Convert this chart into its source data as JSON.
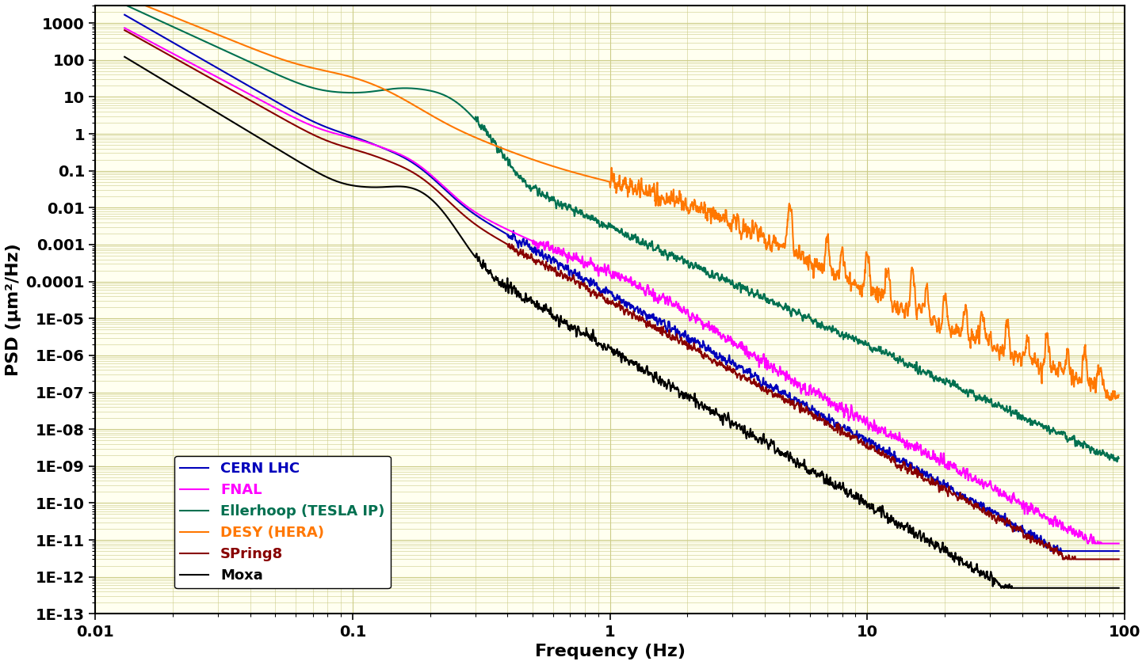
{
  "title": "",
  "xlabel": "Frequency (Hz)",
  "ylabel": "PSD (μm²/Hz)",
  "xlim": [
    0.01,
    100
  ],
  "ylim": [
    1e-13,
    3000
  ],
  "background_color": "#fffff0",
  "fig_background": "#ffffff",
  "series": [
    {
      "label": "CERN LHC",
      "color": "#0000bb",
      "linewidth": 1.5
    },
    {
      "label": "FNAL",
      "color": "#ff00ff",
      "linewidth": 1.5
    },
    {
      "label": "Ellerhoop (TESLA IP)",
      "color": "#007050",
      "linewidth": 1.5
    },
    {
      "label": "DESY (HERA)",
      "color": "#ff7700",
      "linewidth": 1.5
    },
    {
      "label": "SPring8",
      "color": "#880000",
      "linewidth": 1.5
    },
    {
      "label": "Moxa",
      "color": "#000000",
      "linewidth": 1.5
    }
  ],
  "yticks": [
    1e-13,
    1e-12,
    1e-11,
    1e-10,
    1e-09,
    1e-08,
    1e-07,
    1e-06,
    1e-05,
    0.0001,
    0.001,
    0.01,
    0.1,
    1,
    10,
    100,
    1000
  ],
  "ytick_labels": [
    "1E-13",
    "1E-12",
    "1E-11",
    "1E-10",
    "1E-09",
    "1E-08",
    "1E-07",
    "1E-06",
    "1E-05",
    "0.0001",
    "0.001",
    "0.01",
    "0.1",
    "1",
    "10",
    "100",
    "1000"
  ],
  "xticks": [
    0.01,
    0.1,
    1,
    10,
    100
  ],
  "xtick_labels": [
    "0.01",
    "0.1",
    "1",
    "10",
    "100"
  ],
  "legend_loc": "lower left",
  "legend_fontsize": 13,
  "axis_label_fontsize": 16,
  "tick_label_fontsize": 14,
  "grid_color": "#cccc88"
}
